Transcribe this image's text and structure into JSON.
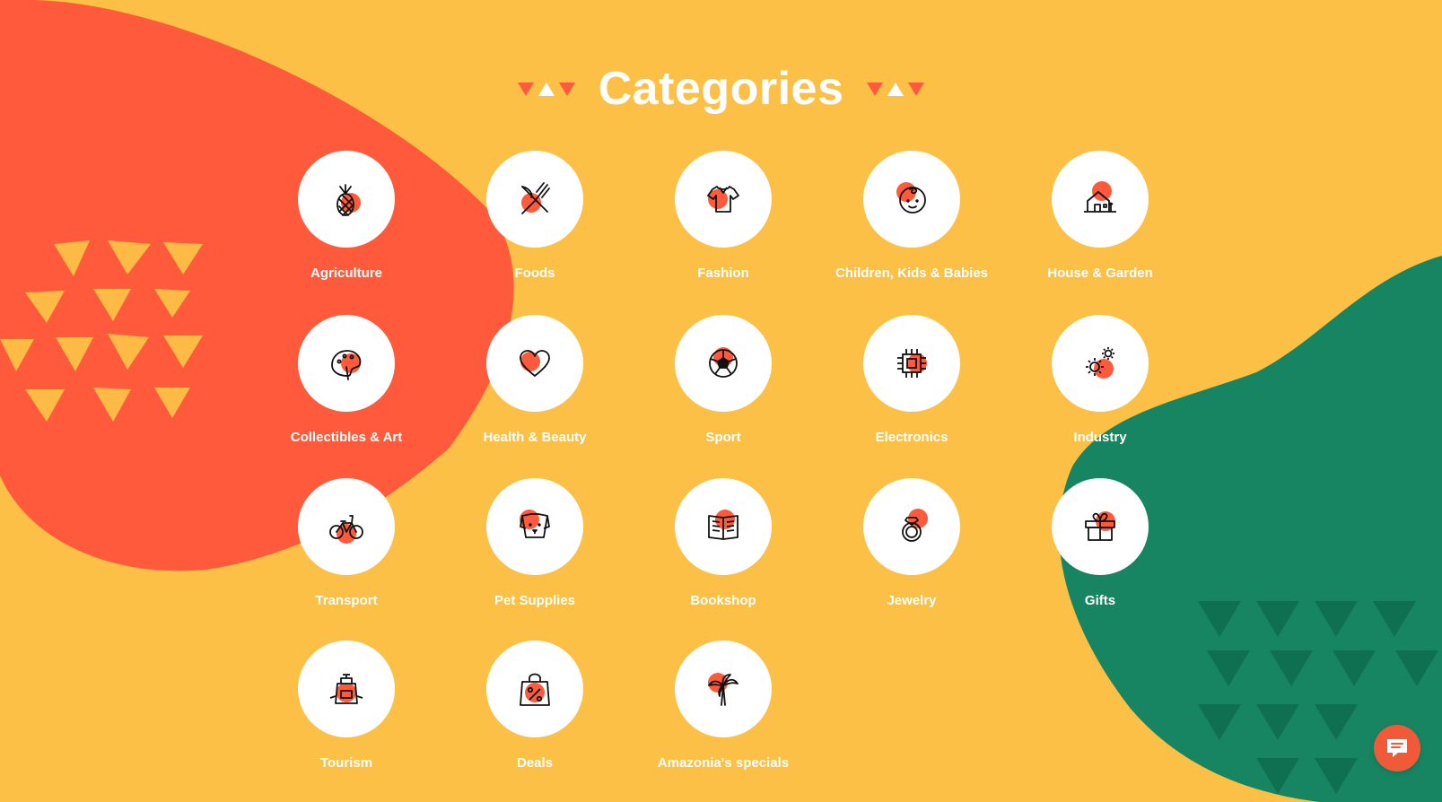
{
  "heading": {
    "title": "Categories"
  },
  "colors": {
    "background": "#FDC046",
    "blob_left": "#FF5A3C",
    "blob_right": "#178562",
    "accent": "#FF5A3C",
    "chat_button": "#F05A38",
    "text": "#FFFFFF"
  },
  "categories": [
    {
      "label": "Agriculture",
      "icon": "pineapple-icon"
    },
    {
      "label": "Foods",
      "icon": "fork-knife-icon"
    },
    {
      "label": "Fashion",
      "icon": "shirt-icon"
    },
    {
      "label": "Children, Kids & Babies",
      "icon": "baby-face-icon"
    },
    {
      "label": "House & Garden",
      "icon": "house-icon"
    },
    {
      "label": "Collectibles & Art",
      "icon": "palette-icon"
    },
    {
      "label": "Health & Beauty",
      "icon": "heart-icon"
    },
    {
      "label": "Sport",
      "icon": "soccer-ball-icon"
    },
    {
      "label": "Electronics",
      "icon": "chip-icon"
    },
    {
      "label": "Industry",
      "icon": "gears-icon"
    },
    {
      "label": "Transport",
      "icon": "bicycle-icon"
    },
    {
      "label": "Pet Supplies",
      "icon": "dog-icon"
    },
    {
      "label": "Bookshop",
      "icon": "book-icon"
    },
    {
      "label": "Jewelry",
      "icon": "ring-icon"
    },
    {
      "label": "Gifts",
      "icon": "gift-icon"
    },
    {
      "label": "Tourism",
      "icon": "backpack-icon"
    },
    {
      "label": "Deals",
      "icon": "shopping-bag-percent-icon"
    },
    {
      "label": "Amazonia's specials",
      "icon": "palm-tree-icon"
    }
  ],
  "chat": {
    "icon": "chat-bubble-icon"
  }
}
